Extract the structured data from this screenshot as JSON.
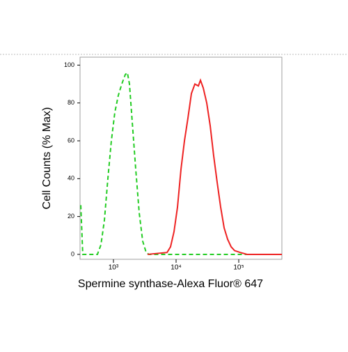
{
  "chart_data": {
    "type": "line",
    "xlabel": "Spermine synthase-Alexa Fluor® 647",
    "ylabel": "Cell Counts (% Max)",
    "xscale": "log",
    "xlim": [
      293,
      488000
    ],
    "ylim": [
      -2.6,
      104.2
    ],
    "xticks": [
      {
        "value": 1000,
        "label": "10³"
      },
      {
        "value": 10000,
        "label": "10⁴"
      },
      {
        "value": 100000,
        "label": "10⁵"
      }
    ],
    "yticks": [
      0,
      20,
      40,
      60,
      80,
      100
    ],
    "series": [
      {
        "color": "#22cc22",
        "dashed": true,
        "x": [
          301,
          324,
          555,
          631,
          717,
          815,
          926,
          1052,
          1196,
          1359,
          1545,
          1668,
          1802,
          1995,
          2268,
          2577,
          2929,
          3328,
          3687,
          488000
        ],
        "values": [
          26,
          0,
          0,
          5,
          18,
          40,
          60,
          75,
          84,
          90,
          95,
          96,
          90,
          70,
          45,
          22,
          7,
          1,
          0,
          0
        ]
      },
      {
        "color": "#ee2222",
        "dashed": false,
        "x": [
          3500,
          7175,
          8150,
          9265,
          10530,
          11970,
          13600,
          15450,
          17560,
          19950,
          22680,
          24490,
          27100,
          30830,
          35000,
          39810,
          45250,
          51400,
          58430,
          66400,
          75500,
          85800,
          105300,
          135900,
          488000
        ],
        "values": [
          0,
          1,
          4,
          12,
          25,
          45,
          60,
          72,
          85,
          90,
          89,
          92,
          88,
          80,
          68,
          52,
          38,
          25,
          14,
          8,
          4,
          2,
          1,
          0,
          0
        ]
      }
    ]
  }
}
